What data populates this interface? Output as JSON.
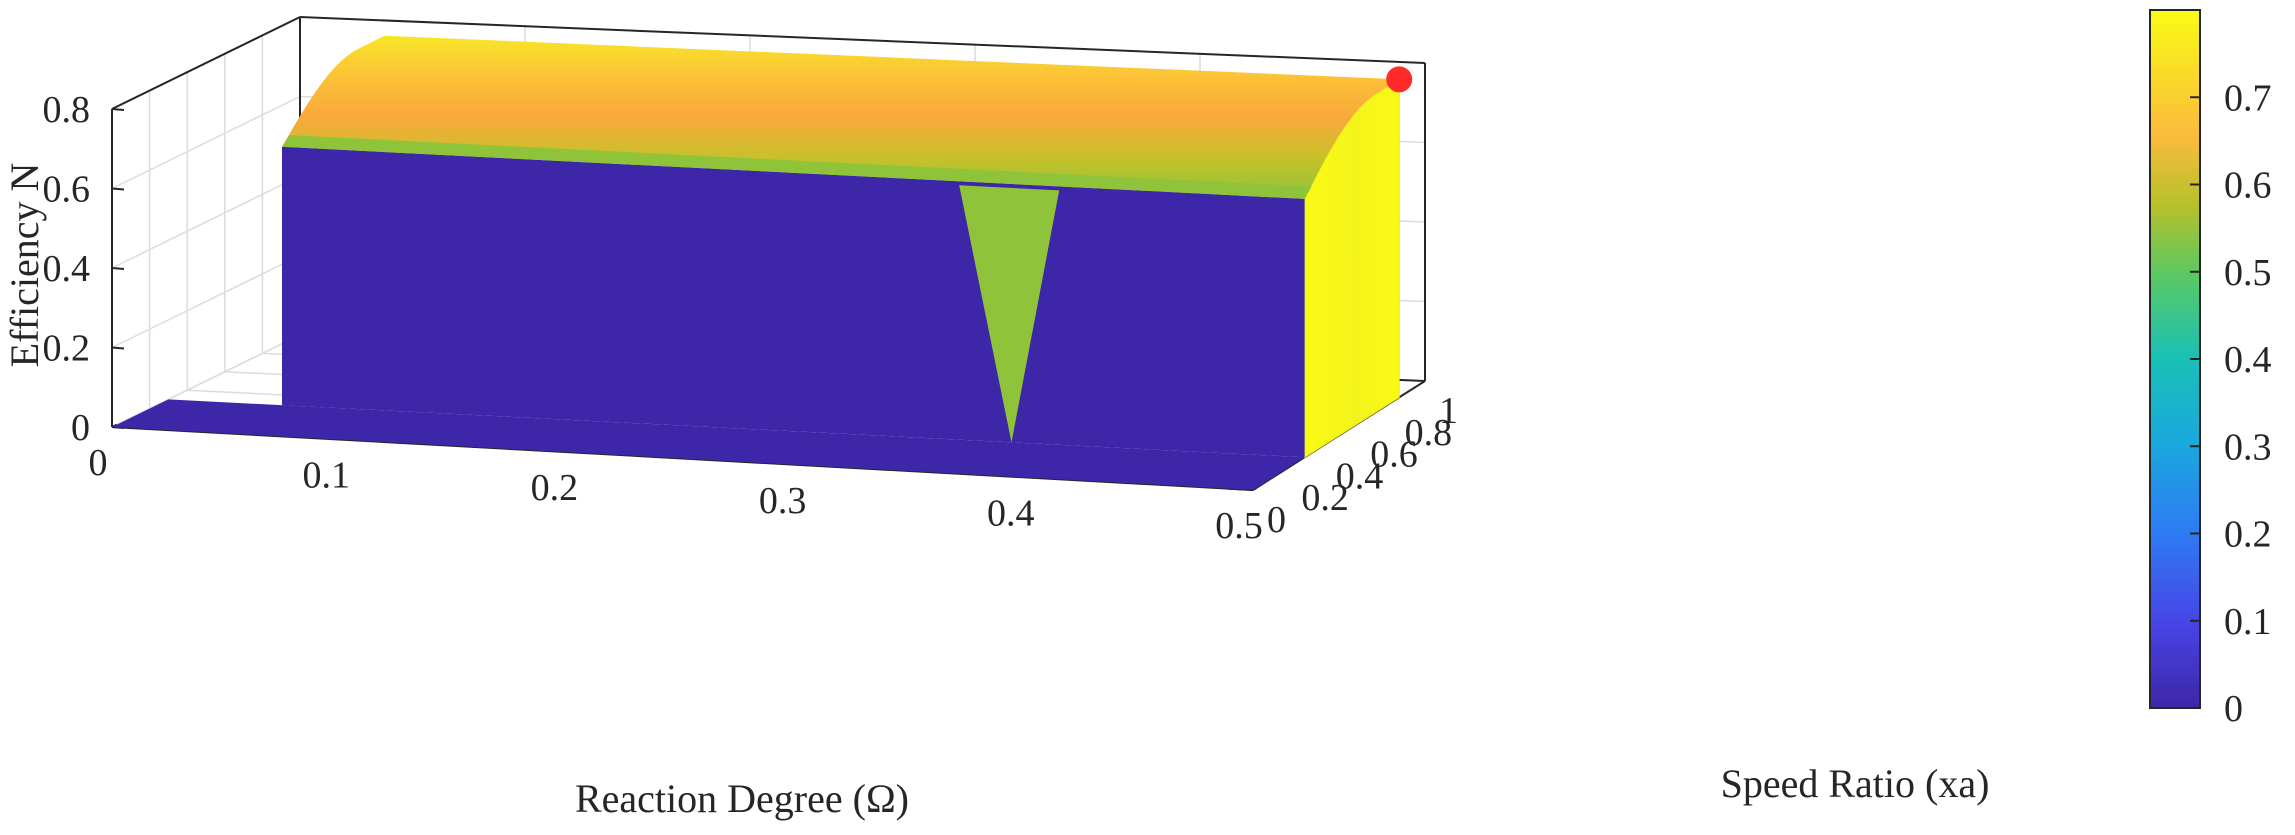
{
  "chart_data": {
    "type": "surface",
    "zlabel": "Efficiency N",
    "xlabel": "Reaction Degree (Ω)",
    "ylabel": "Speed Ratio (xa)",
    "x_axis": {
      "ticks": [
        0,
        0.1,
        0.2,
        0.3,
        0.4,
        0.5
      ],
      "labels": [
        "0",
        "0.1",
        "0.2",
        "0.3",
        "0.4",
        "0.5"
      ],
      "lim": [
        0,
        0.5
      ]
    },
    "y_axis": {
      "ticks": [
        0,
        0.2,
        0.4,
        0.6,
        0.8,
        1
      ],
      "labels": [
        "0",
        "0.2",
        "0.4",
        "0.6",
        "0.8",
        "1"
      ],
      "lim": [
        0,
        1
      ]
    },
    "z_axis": {
      "ticks": [
        0,
        0.2,
        0.4,
        0.6,
        0.8
      ],
      "labels": [
        "0",
        "0.2",
        "0.4",
        "0.6",
        "0.8"
      ],
      "lim": [
        0,
        0.8
      ]
    },
    "grid": true,
    "colormap": "parula",
    "surface": {
      "x_range": [
        0.05,
        0.5
      ],
      "y_range": [
        0.3,
        0.85
      ],
      "peak_efficiency": 0.8,
      "front_edge_efficiency": 0.65,
      "rear_edge_efficiency": 0.0,
      "zero_elsewhere": 0.0
    },
    "colorbar": {
      "ticks": [
        0,
        0.1,
        0.2,
        0.3,
        0.4,
        0.5,
        0.6,
        0.7
      ],
      "labels": [
        "0",
        "0.1",
        "0.2",
        "0.3",
        "0.4",
        "0.5",
        "0.6",
        "0.7"
      ],
      "range": [
        0,
        0.8
      ]
    },
    "max_point": {
      "x": 0.5,
      "y": 0.85,
      "z": 0.8,
      "color": "#ff2a2a"
    },
    "colors": {
      "low": "#3e26a8",
      "green": "#8fc43a",
      "orange": "#f9a73a",
      "yellow": "#f9fa14",
      "yellow_side": "#f4f41c"
    }
  }
}
